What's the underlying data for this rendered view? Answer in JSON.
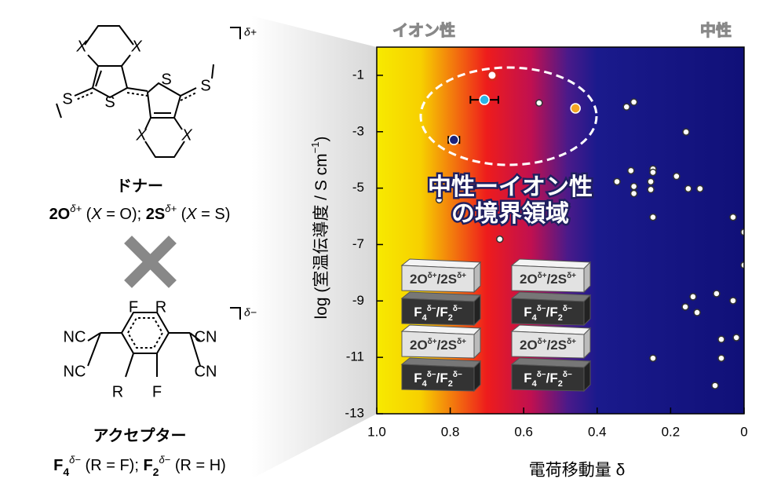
{
  "chart_data": {
    "type": "scatter",
    "xlabel": "電荷移動量 δ",
    "ylabel": [
      "log (室温伝導度 / S cm",
      "−1",
      ")"
    ],
    "xlim": [
      1.0,
      0
    ],
    "ylim": [
      -13,
      0
    ],
    "xticks": [
      {
        "value": 1.0,
        "label": "1.0"
      },
      0.8,
      0.6,
      0.4,
      0.2,
      0
    ],
    "yticks": [
      -1,
      -3,
      -5,
      -7,
      -9,
      -11,
      -13
    ],
    "region_labels": [
      "イオン性",
      "中性"
    ],
    "annotation": [
      "中性ーイオン性",
      "の境界領域"
    ],
    "series": [
      {
        "color": "#ffffff",
        "x": [
          0.558,
          0.32,
          0.3,
          0.158,
          0.83,
          0.665,
          0.346,
          0.308,
          0.3,
          0.3,
          0.248,
          0.248,
          0.254,
          0.254,
          0.184,
          0.152,
          0.12,
          0.248,
          0.03,
          0.0,
          0.0,
          0.075,
          0.139,
          0.16,
          0.128,
          0.03,
          0.062,
          0.021,
          0.062,
          0.248,
          0.079
        ],
        "values": [
          -1.98,
          -2.12,
          -1.95,
          -3.01,
          -5.41,
          -6.81,
          -4.77,
          -4.38,
          -4.94,
          -5.19,
          -4.32,
          -4.44,
          -4.77,
          -5.05,
          -4.58,
          -5.02,
          -5.02,
          -6.03,
          -6.03,
          -6.56,
          -7.73,
          -8.74,
          -8.85,
          -9.21,
          -9.41,
          -8.99,
          -10.36,
          -10.3,
          -11.03,
          -11.03,
          -12.0
        ]
      },
      {
        "color": "#d9261c",
        "marker": "open",
        "x": [
          0.686
        ],
        "values": [
          -1.0
        ]
      },
      {
        "color": "#29b6e8",
        "x": [
          0.707
        ],
        "values": [
          -1.87
        ],
        "xerr": [
          0.038
        ]
      },
      {
        "color": "#f5a623",
        "x": [
          0.459
        ],
        "values": [
          -2.17
        ]
      },
      {
        "color": "#1a237e",
        "x": [
          0.79
        ],
        "values": [
          -3.29
        ],
        "xerr": [
          0.015
        ]
      }
    ]
  },
  "layers": {
    "donor_layer": [
      "2O",
      "δ+",
      "/2S",
      "δ+"
    ],
    "acceptor_layer": [
      "F",
      "4",
      "δ−",
      "/F",
      "2",
      "δ−"
    ]
  },
  "donor": {
    "atoms": [
      "X",
      "X",
      "S",
      "S",
      "S",
      "S",
      "X",
      "X"
    ],
    "charge": "δ+",
    "title": "ドナー",
    "caption": [
      "2O",
      "δ+",
      " (",
      "X",
      " = O); ",
      "2S",
      "δ+",
      " (",
      "X",
      " = S)"
    ]
  },
  "acceptor": {
    "atoms": [
      "F",
      "R",
      "NC",
      "NC",
      "CN",
      "CN",
      "R",
      "F"
    ],
    "charge": "δ−",
    "title": "アクセプター",
    "caption": [
      "F",
      "4",
      "δ−",
      " (R = F); ",
      "F",
      "2",
      "δ−",
      " (R = H)"
    ]
  }
}
